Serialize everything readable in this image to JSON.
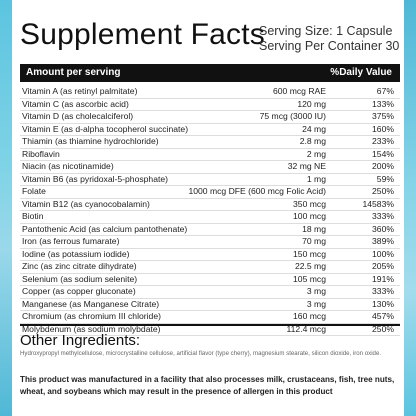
{
  "title": "Supplement Facts",
  "serving_size": "Serving Size: 1 Capsule",
  "servings_per_container": "Serving Per Container 30",
  "table_header": {
    "left": "Amount per serving",
    "right": "%Daily Value"
  },
  "rows": [
    {
      "name": "Vitamin A (as retinyl palmitate)",
      "amount": "600 mcg RAE",
      "dv": "67%"
    },
    {
      "name": "Vitamin C (as ascorbic acid)",
      "amount": "120 mg",
      "dv": "133%"
    },
    {
      "name": "Vitamin D (as cholecalciferol)",
      "amount": "75 mcg (3000 IU)",
      "dv": "375%"
    },
    {
      "name": "Vitamin E (as d-alpha tocopherol succinate)",
      "amount": "24 mg",
      "dv": "160%"
    },
    {
      "name": "Thiamin (as thiamine hydrochloride)",
      "amount": "2.8 mg",
      "dv": "233%"
    },
    {
      "name": "Riboflavin",
      "amount": "2 mg",
      "dv": "154%"
    },
    {
      "name": "Niacin (as nicotinamide)",
      "amount": "32 mg NE",
      "dv": "200%"
    },
    {
      "name": "Vitamin B6 (as pyridoxal-5-phosphate)",
      "amount": "1 mg",
      "dv": "59%"
    },
    {
      "name": "Folate",
      "amount": "1000 mcg DFE (600 mcg Folic Acid)",
      "dv": "250%"
    },
    {
      "name": "Vitamin B12 (as cyanocobalamin)",
      "amount": "350 mcg",
      "dv": "14583%"
    },
    {
      "name": "Biotin",
      "amount": "100 mcg",
      "dv": "333%"
    },
    {
      "name": "Pantothenic Acid (as calcium pantothenate)",
      "amount": "18 mg",
      "dv": "360%"
    },
    {
      "name": "Iron (as ferrous fumarate)",
      "amount": "70 mg",
      "dv": "389%"
    },
    {
      "name": "Iodine (as potassium iodide)",
      "amount": "150 mcg",
      "dv": "100%"
    },
    {
      "name": "Zinc (as zinc citrate dihydrate)",
      "amount": "22.5 mg",
      "dv": "205%"
    },
    {
      "name": "Selenium (as sodium selenite)",
      "amount": "105 mcg",
      "dv": "191%"
    },
    {
      "name": "Copper (as copper gluconate)",
      "amount": "3 mg",
      "dv": "333%"
    },
    {
      "name": "Manganese (as Manganese Citrate)",
      "amount": "3 mg",
      "dv": "130%"
    },
    {
      "name": "Chromium (as chromium III chloride)",
      "amount": "160 mcg",
      "dv": "457%"
    },
    {
      "name": "Molybdenum (as sodium molybdate)",
      "amount": "112.4 mcg",
      "dv": "250%"
    }
  ],
  "other_ingredients": {
    "title": "Other Ingredients:",
    "text": "Hydroxypropyl methylcellulose, microcrystalline cellulose, artificial flavor (type cherry), magnesium stearate, silicon dioxide, iron oxide."
  },
  "allergen_statement": "This product was manufactured in a facility that also processes milk, crustaceans, fish, tree nuts, wheat, and soybeans which may result in the presence of allergen in this product",
  "colors": {
    "accent_edge": "#5cc4e0",
    "header_bar": "#111111"
  }
}
